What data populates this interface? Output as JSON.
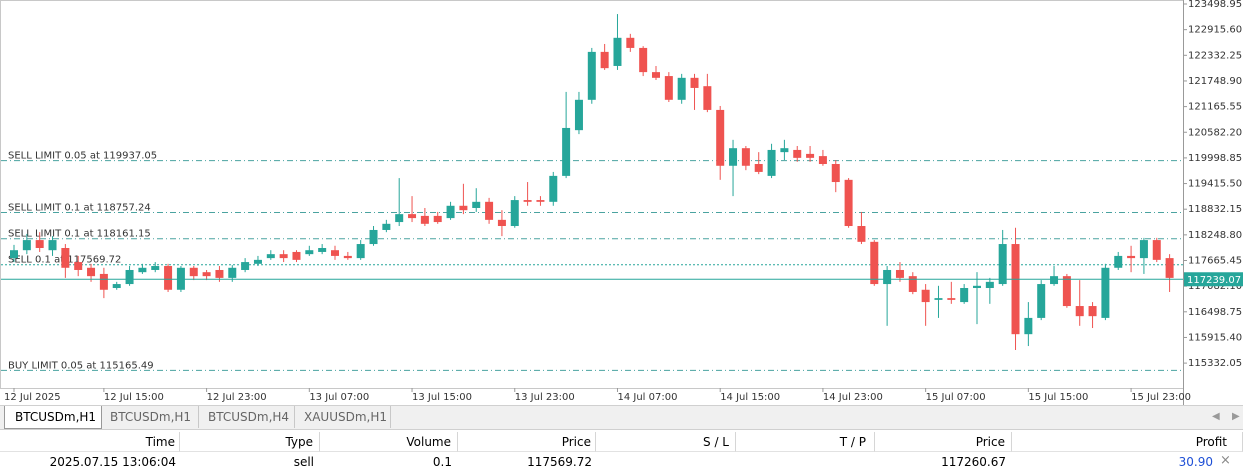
{
  "chart_data": {
    "type": "candlestick",
    "categories": [
      "12 Jul 2025",
      null,
      null,
      null,
      null,
      null,
      null,
      "12 Jul 15:00",
      null,
      null,
      null,
      null,
      null,
      null,
      null,
      "12 Jul 23:00",
      null,
      null,
      null,
      null,
      null,
      null,
      null,
      "13 Jul 07:00",
      null,
      null,
      null,
      null,
      null,
      null,
      null,
      "13 Jul 15:00",
      null,
      null,
      null,
      null,
      null,
      null,
      null,
      "13 Jul 23:00",
      null,
      null,
      null,
      null,
      null,
      null,
      null,
      "14 Jul 07:00",
      null,
      null,
      null,
      null,
      null,
      null,
      null,
      "14 Jul 15:00",
      null,
      null,
      null,
      null,
      null,
      null,
      null,
      "14 Jul 23:00",
      null,
      null,
      null,
      null,
      null,
      null,
      null,
      "15 Jul 07:00",
      null,
      null,
      null,
      null,
      null,
      null,
      null,
      "15 Jul 15:00",
      null,
      null,
      null,
      null,
      null,
      null,
      null,
      "15 Jul 23:00",
      null,
      null,
      null
    ],
    "ohlc": [
      [
        117720,
        118020,
        117630,
        117900
      ],
      [
        117900,
        118270,
        117810,
        118130
      ],
      [
        118130,
        118310,
        117860,
        117950
      ],
      [
        117900,
        118220,
        117770,
        118130
      ],
      [
        117950,
        118040,
        117270,
        117500
      ],
      [
        117630,
        117770,
        117310,
        117450
      ],
      [
        117500,
        117590,
        117180,
        117310
      ],
      [
        117360,
        117500,
        116810,
        117000
      ],
      [
        117040,
        117180,
        117000,
        117130
      ],
      [
        117130,
        117540,
        117090,
        117450
      ],
      [
        117400,
        117590,
        117360,
        117500
      ],
      [
        117450,
        117630,
        117400,
        117540
      ],
      [
        117540,
        117590,
        116950,
        117000
      ],
      [
        117000,
        117540,
        116950,
        117500
      ],
      [
        117500,
        117540,
        117220,
        117310
      ],
      [
        117400,
        117450,
        117220,
        117310
      ],
      [
        117450,
        117540,
        117180,
        117270
      ],
      [
        117270,
        117560,
        117180,
        117500
      ],
      [
        117450,
        117720,
        117400,
        117630
      ],
      [
        117590,
        117770,
        117540,
        117680
      ],
      [
        117720,
        117900,
        117680,
        117810
      ],
      [
        117810,
        117900,
        117630,
        117720
      ],
      [
        117860,
        117900,
        117630,
        117680
      ],
      [
        117810,
        118000,
        117770,
        117900
      ],
      [
        117860,
        118040,
        117810,
        117950
      ],
      [
        117900,
        118000,
        117680,
        117770
      ],
      [
        117770,
        117860,
        117680,
        117720
      ],
      [
        117720,
        118130,
        117680,
        118040
      ],
      [
        118040,
        118450,
        118000,
        118360
      ],
      [
        118360,
        118590,
        118310,
        118500
      ],
      [
        118540,
        119540,
        118450,
        118720
      ],
      [
        118720,
        119130,
        118540,
        118630
      ],
      [
        118680,
        118860,
        118450,
        118500
      ],
      [
        118680,
        118770,
        118500,
        118540
      ],
      [
        118630,
        119000,
        118590,
        118910
      ],
      [
        118910,
        119410,
        118720,
        118810
      ],
      [
        118860,
        119310,
        118770,
        119000
      ],
      [
        119000,
        119090,
        118500,
        118590
      ],
      [
        118590,
        118810,
        118220,
        118450
      ],
      [
        118450,
        119130,
        118410,
        119040
      ],
      [
        119040,
        119450,
        118910,
        119000
      ],
      [
        119040,
        119130,
        118910,
        119000
      ],
      [
        119000,
        119680,
        118910,
        119590
      ],
      [
        119590,
        121500,
        119540,
        120680
      ],
      [
        120630,
        121500,
        120540,
        121320
      ],
      [
        121320,
        122500,
        121230,
        122410
      ],
      [
        122410,
        122590,
        122000,
        122040
      ],
      [
        122090,
        123270,
        122000,
        122730
      ],
      [
        122730,
        122820,
        122410,
        122500
      ],
      [
        122500,
        122540,
        121860,
        121950
      ],
      [
        121950,
        122090,
        121770,
        121820
      ],
      [
        121860,
        121950,
        121270,
        121320
      ],
      [
        121320,
        121910,
        121230,
        121820
      ],
      [
        121820,
        121910,
        121090,
        121590
      ],
      [
        121630,
        121910,
        121040,
        121090
      ],
      [
        121090,
        121180,
        119500,
        119820
      ],
      [
        119820,
        120410,
        119130,
        120220
      ],
      [
        120220,
        120270,
        119720,
        119820
      ],
      [
        119860,
        120130,
        119630,
        119680
      ],
      [
        119590,
        120320,
        119540,
        120180
      ],
      [
        120130,
        120410,
        119950,
        120220
      ],
      [
        120180,
        120270,
        119910,
        120000
      ],
      [
        120090,
        120270,
        119910,
        120000
      ],
      [
        120040,
        120180,
        119820,
        119860
      ],
      [
        119860,
        119950,
        119220,
        119450
      ],
      [
        119500,
        119540,
        118410,
        118450
      ],
      [
        118450,
        118770,
        118040,
        118090
      ],
      [
        118090,
        118130,
        117090,
        117130
      ],
      [
        117130,
        117540,
        116180,
        117450
      ],
      [
        117450,
        117630,
        117180,
        117270
      ],
      [
        117310,
        117400,
        116900,
        116950
      ],
      [
        117000,
        117130,
        116180,
        116720
      ],
      [
        116770,
        117090,
        116360,
        116810
      ],
      [
        116810,
        117180,
        116680,
        116770
      ],
      [
        116720,
        117130,
        116680,
        117040
      ],
      [
        117040,
        117400,
        116220,
        117090
      ],
      [
        117040,
        117270,
        116680,
        117180
      ],
      [
        117130,
        118360,
        117090,
        118040
      ],
      [
        118040,
        118410,
        115630,
        115990
      ],
      [
        115990,
        116720,
        115720,
        116360
      ],
      [
        116360,
        117220,
        116310,
        117130
      ],
      [
        117130,
        117540,
        117090,
        117310
      ],
      [
        117310,
        117360,
        116590,
        116630
      ],
      [
        116630,
        117220,
        116180,
        116400
      ],
      [
        116630,
        116720,
        116130,
        116400
      ],
      [
        116360,
        117590,
        116310,
        117500
      ],
      [
        117500,
        117860,
        117450,
        117770
      ],
      [
        117770,
        118000,
        117400,
        117720
      ],
      [
        117720,
        118180,
        117360,
        118130
      ],
      [
        118130,
        118180,
        117630,
        117680
      ],
      [
        117720,
        117810,
        116950,
        117270
      ]
    ],
    "up_color": "#26a69a",
    "down_color": "#ef5350",
    "ylim": [
      114766,
      123590
    ],
    "yticks": [
      123498.95,
      {
        "value": 122915.6,
        "label": "122915.60"
      },
      122332.25,
      {
        "value": 121748.9,
        "label": "121748.90"
      },
      121165.55,
      {
        "value": 120582.2,
        "label": "120582.20"
      },
      119998.85,
      {
        "value": 119415.5,
        "label": "119415.50"
      },
      118832.15,
      {
        "value": 118248.8,
        "label": "118248.80"
      },
      117665.45,
      {
        "value": 117082.1,
        "label": "117082.10"
      },
      116498.75,
      {
        "value": 115915.4,
        "label": "115915.40"
      },
      115332.05
    ],
    "current_price": 117239.07,
    "current_color": "#26a69a",
    "orders": [
      {
        "label": "SELL LIMIT 0.05 at 119937.05",
        "price": 119937.05,
        "style": "dashdot",
        "color": "#4aa3a0"
      },
      {
        "label": "SELL LIMIT 0.1 at 118757.24",
        "price": 118757.24,
        "style": "dashdot",
        "color": "#4aa3a0"
      },
      {
        "label": "SELL LIMIT 0.1 at 118161.15",
        "price": 118161.15,
        "style": "dashdot",
        "color": "#4aa3a0"
      },
      {
        "label": "SELL 0.1 at 117569.72",
        "price": 117569.72,
        "style": "dotted",
        "color": "#26a69a"
      },
      {
        "label": "BUY LIMIT 0.05 at 115165.49",
        "price": 115165.49,
        "style": "dashdot",
        "color": "#4aa3a0"
      }
    ]
  },
  "tabs": [
    "BTCUSDm,H1",
    "BTCUSDm,H1",
    "BTCUSDm,H4",
    "XAUUSDm,H1"
  ],
  "table": {
    "columns": [
      "Time",
      "Type",
      "Volume",
      "Price",
      "S / L",
      "T / P",
      "Price",
      "Profit"
    ],
    "rows": [
      [
        "2025.07.15 13:06:04",
        "sell",
        "0.1",
        "117569.72",
        null,
        null,
        "117260.67",
        "30.90"
      ]
    ]
  }
}
